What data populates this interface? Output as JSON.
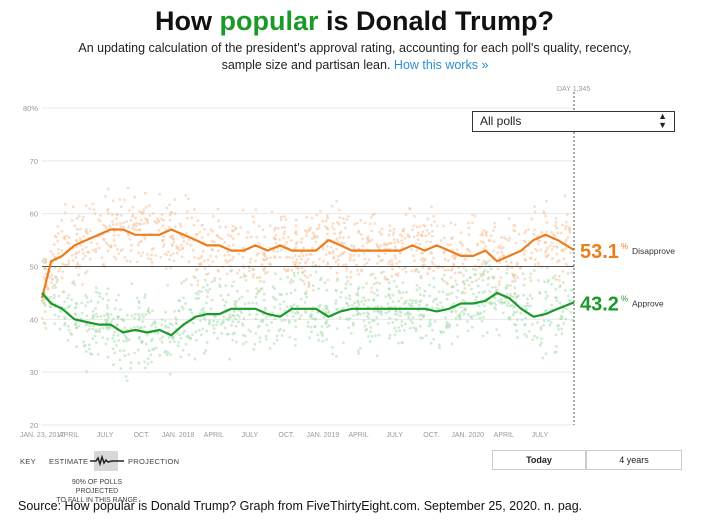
{
  "header": {
    "title_pre": "How ",
    "title_hl": "popular",
    "title_post": " is Donald Trump?",
    "subtitle": "An updating calculation of the president's approval rating, accounting for each poll's quality, recency, sample size and partisan lean.",
    "link": "How this works »"
  },
  "controls": {
    "dropdown_value": "All polls",
    "day_label": "DAY 1,345",
    "toggle_today": "Today",
    "toggle_4years": "4 years"
  },
  "key": {
    "key_label": "KEY",
    "estimate": "ESTIMATE",
    "projection": "PROJECTION",
    "note_line1": "90% OF POLLS PROJECTED",
    "note_line2": "TO FALL IN THIS RANGE"
  },
  "source": "Source: How popular is Donald Trump? Graph from FiveThirtyEight.com. September 25, 2020. n. pag.",
  "colors": {
    "disapprove": "#ed7d1c",
    "approve": "#1b9a29",
    "disapprove_dots": "#f6c197",
    "approve_dots": "#a6dcab",
    "link": "#2b8fd1"
  },
  "chart_data": {
    "type": "line",
    "ylim": [
      20,
      80
    ],
    "yticks": [
      "20",
      "30",
      "40",
      "50",
      "60",
      "70",
      "80%"
    ],
    "x_start": "2017-01-23",
    "x_end": "2020-09-25",
    "xticks": [
      {
        "date": "2017-01-23",
        "label": "JAN. 23, 2017"
      },
      {
        "date": "2017-04-01",
        "label": "APRIL"
      },
      {
        "date": "2017-07-01",
        "label": "JULY"
      },
      {
        "date": "2017-10-01",
        "label": "OCT."
      },
      {
        "date": "2018-01-01",
        "label": "JAN. 2018"
      },
      {
        "date": "2018-04-01",
        "label": "APRIL"
      },
      {
        "date": "2018-07-01",
        "label": "JULY"
      },
      {
        "date": "2018-10-01",
        "label": "OCT."
      },
      {
        "date": "2019-01-01",
        "label": "JAN. 2019"
      },
      {
        "date": "2019-04-01",
        "label": "APRIL"
      },
      {
        "date": "2019-07-01",
        "label": "JULY"
      },
      {
        "date": "2019-10-01",
        "label": "OCT."
      },
      {
        "date": "2020-01-01",
        "label": "JAN. 2020"
      },
      {
        "date": "2020-04-01",
        "label": "APRIL"
      },
      {
        "date": "2020-07-01",
        "label": "JULY"
      }
    ],
    "reference_line": 50,
    "series": [
      {
        "name": "Disapprove",
        "final_value": "53.1",
        "color": "#ed7d1c",
        "x": [
          "2017-01-23",
          "2017-02-15",
          "2017-03-15",
          "2017-04-15",
          "2017-05-15",
          "2017-06-15",
          "2017-07-15",
          "2017-08-15",
          "2017-09-15",
          "2017-10-15",
          "2017-11-15",
          "2017-12-15",
          "2018-01-15",
          "2018-02-15",
          "2018-03-15",
          "2018-04-15",
          "2018-05-15",
          "2018-06-15",
          "2018-07-15",
          "2018-08-15",
          "2018-09-15",
          "2018-10-15",
          "2018-11-15",
          "2018-12-15",
          "2019-01-15",
          "2019-02-15",
          "2019-03-15",
          "2019-04-15",
          "2019-05-15",
          "2019-06-15",
          "2019-07-15",
          "2019-08-15",
          "2019-09-15",
          "2019-10-15",
          "2019-11-15",
          "2019-12-15",
          "2020-01-15",
          "2020-02-15",
          "2020-03-15",
          "2020-04-15",
          "2020-05-15",
          "2020-06-15",
          "2020-07-15",
          "2020-08-15",
          "2020-09-25"
        ],
        "y": [
          44,
          51,
          52,
          54,
          55,
          56,
          57,
          57,
          56,
          56,
          56,
          57,
          56,
          55,
          54,
          54,
          53,
          53,
          54,
          53,
          54,
          53,
          53,
          53,
          55,
          54,
          53,
          53,
          53,
          53,
          53,
          54,
          53,
          54,
          53,
          52,
          52,
          53,
          51,
          52,
          53,
          55,
          56,
          55,
          53.1
        ]
      },
      {
        "name": "Approve",
        "final_value": "43.2",
        "color": "#1b9a29",
        "x": [
          "2017-01-23",
          "2017-02-15",
          "2017-03-15",
          "2017-04-15",
          "2017-05-15",
          "2017-06-15",
          "2017-07-15",
          "2017-08-15",
          "2017-09-15",
          "2017-10-15",
          "2017-11-15",
          "2017-12-15",
          "2018-01-15",
          "2018-02-15",
          "2018-03-15",
          "2018-04-15",
          "2018-05-15",
          "2018-06-15",
          "2018-07-15",
          "2018-08-15",
          "2018-09-15",
          "2018-10-15",
          "2018-11-15",
          "2018-12-15",
          "2019-01-15",
          "2019-02-15",
          "2019-03-15",
          "2019-04-15",
          "2019-05-15",
          "2019-06-15",
          "2019-07-15",
          "2019-08-15",
          "2019-09-15",
          "2019-10-15",
          "2019-11-15",
          "2019-12-15",
          "2020-01-15",
          "2020-02-15",
          "2020-03-15",
          "2020-04-15",
          "2020-05-15",
          "2020-06-15",
          "2020-07-15",
          "2020-08-15",
          "2020-09-25"
        ],
        "y": [
          45,
          43,
          42,
          40,
          39.5,
          39,
          39,
          37.5,
          38,
          37.5,
          38,
          37,
          39,
          40.5,
          41,
          41,
          42,
          42,
          42,
          41,
          40.5,
          42,
          42,
          42,
          40.5,
          41.5,
          42,
          42,
          42,
          42,
          42,
          42,
          42,
          41.5,
          42,
          43,
          43,
          43.5,
          45,
          44,
          42,
          40.5,
          41,
          42,
          43.2
        ]
      }
    ]
  }
}
